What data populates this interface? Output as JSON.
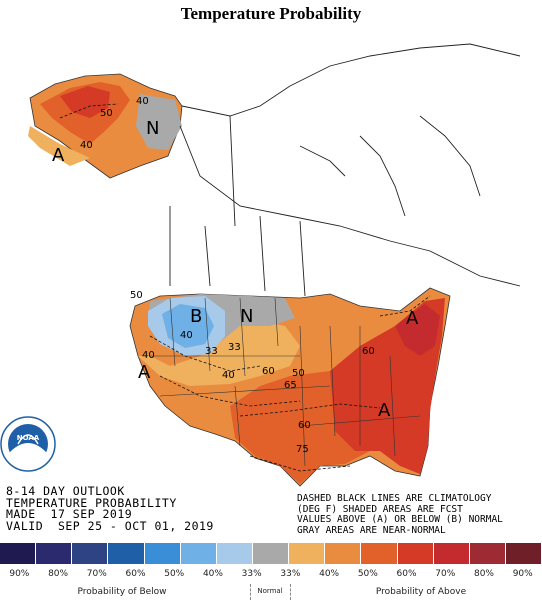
{
  "title": "Temperature Probability",
  "outlook": {
    "line1": "8-14 DAY OUTLOOK",
    "line2": "TEMPERATURE PROBABILITY",
    "line3": "MADE  17 SEP 2019",
    "line4": "VALID  SEP 25 - OCT 01, 2019"
  },
  "note": {
    "line1": "DASHED BLACK LINES ARE CLIMATOLOGY",
    "line2": "(DEG F) SHADED AREAS ARE FCST",
    "line3": "VALUES ABOVE (A) OR BELOW (B) NORMAL",
    "line4": "GRAY AREAS ARE NEAR-NORMAL"
  },
  "map_labels": {
    "alaska_50": "50",
    "alaska_40a": "40",
    "alaska_40b": "40",
    "alaska_A": "A",
    "alaska_N": "N",
    "west_B": "B",
    "west_N": "N",
    "west_A": "A",
    "east_A_upper": "A",
    "east_A_lower": "A",
    "c40a": "40",
    "c40b": "40",
    "c40c": "40",
    "c33a": "33",
    "c33b": "33",
    "c50a": "50",
    "c50b": "50",
    "c60a": "60",
    "c60b": "60",
    "c65": "65",
    "c75": "75",
    "c60_east": "60"
  },
  "logo_text": "NOAA",
  "legend": {
    "colors": [
      "#1f1a4f",
      "#2b2a6e",
      "#2e4384",
      "#1f5fa8",
      "#3a8ed8",
      "#6fb0e6",
      "#a7c9ea",
      "#a9a9a9",
      "#f0b15e",
      "#ea8c3f",
      "#e2612a",
      "#d43a26",
      "#c42b2f",
      "#9e2a33",
      "#6e1f27"
    ],
    "pcts": [
      "90%",
      "80%",
      "70%",
      "60%",
      "50%",
      "40%",
      "33%",
      "33%",
      "40%",
      "50%",
      "60%",
      "70%",
      "80%",
      "90%"
    ],
    "below_label": "Probability of Below",
    "normal_label": "Normal",
    "above_label": "Probability of Above"
  }
}
